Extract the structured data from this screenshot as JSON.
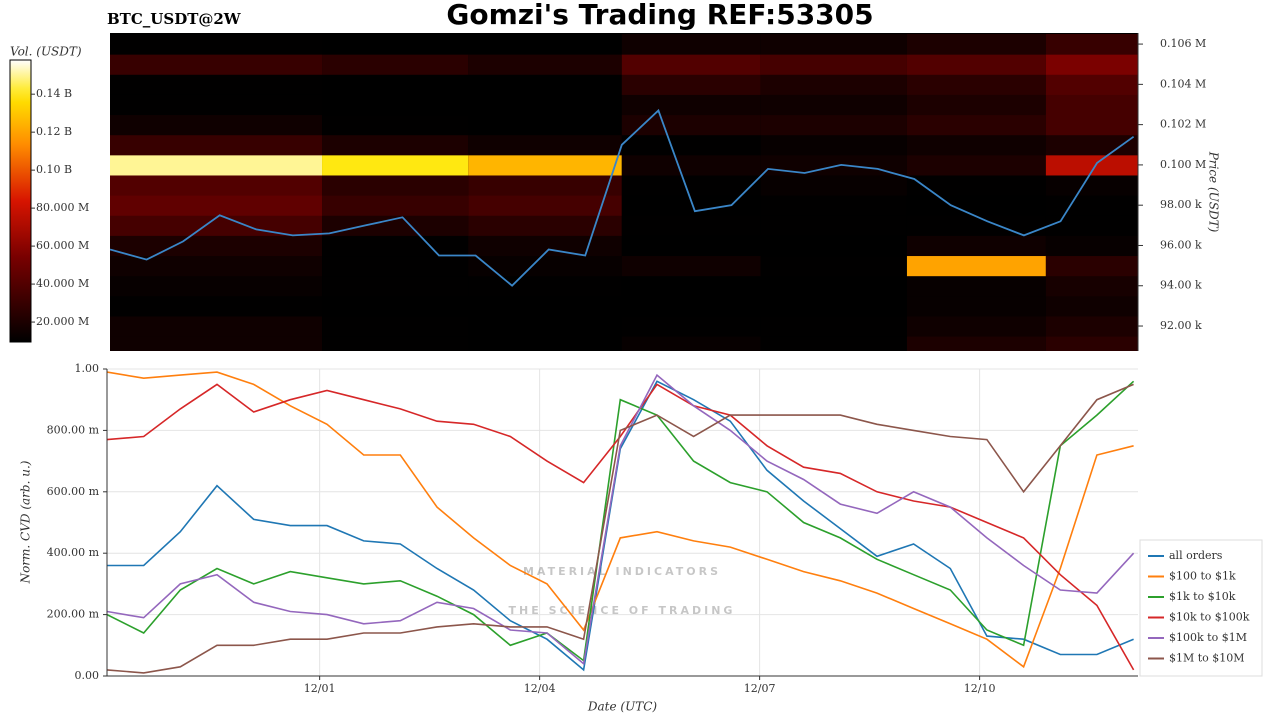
{
  "title": "Gomzi's Trading REF:53305",
  "watermark": {
    "title": "MATERIAL INDICATORS",
    "subtitle": "THE SCIENCE OF TRADING"
  },
  "chart_data": [
    {
      "type": "heatmap",
      "title": "BTC_USDT@2W",
      "x_edges": [
        -2.9,
        0,
        2,
        4.1,
        6,
        8,
        9.9,
        11.16
      ],
      "y_edges": [
        90500,
        91500,
        92500,
        93500,
        94500,
        95500,
        96500,
        97500,
        98500,
        99500,
        100500,
        101500,
        102500,
        103500,
        104500,
        105500,
        106500
      ],
      "values": [
        [
          15000000,
          10000000,
          8000000,
          12000000,
          10000000,
          20000000,
          25000000
        ],
        [
          15000000,
          10000000,
          8000000,
          10000000,
          10000000,
          15000000,
          20000000
        ],
        [
          10000000,
          8000000,
          8000000,
          8000000,
          8000000,
          12000000,
          15000000
        ],
        [
          12000000,
          10000000,
          10000000,
          8000000,
          8000000,
          12000000,
          18000000
        ],
        [
          15000000,
          10000000,
          12000000,
          15000000,
          10000000,
          120000000,
          25000000
        ],
        [
          20000000,
          10000000,
          15000000,
          8000000,
          8000000,
          15000000,
          12000000
        ],
        [
          35000000,
          20000000,
          25000000,
          10000000,
          10000000,
          10000000,
          10000000
        ],
        [
          45000000,
          30000000,
          35000000,
          8000000,
          10000000,
          8000000,
          10000000
        ],
        [
          40000000,
          25000000,
          30000000,
          10000000,
          12000000,
          10000000,
          12000000
        ],
        [
          150000000,
          140000000,
          125000000,
          15000000,
          15000000,
          20000000,
          75000000
        ],
        [
          30000000,
          20000000,
          15000000,
          10000000,
          12000000,
          15000000,
          20000000
        ],
        [
          15000000,
          10000000,
          8000000,
          20000000,
          20000000,
          25000000,
          35000000
        ],
        [
          10000000,
          8000000,
          8000000,
          15000000,
          15000000,
          20000000,
          35000000
        ],
        [
          10000000,
          8000000,
          8000000,
          25000000,
          20000000,
          25000000,
          40000000
        ],
        [
          30000000,
          25000000,
          20000000,
          40000000,
          35000000,
          40000000,
          55000000
        ],
        [
          10000000,
          8000000,
          8000000,
          15000000,
          15000000,
          20000000,
          30000000
        ]
      ],
      "colorbar_label": "Vol. (USDT)",
      "clim": [
        9500000,
        158000000
      ],
      "cticks": [
        {
          "value": 20000000,
          "label": "20.000 M"
        },
        {
          "value": 40000000,
          "label": "40.000 M"
        },
        {
          "value": 60000000,
          "label": "60.000 M"
        },
        {
          "value": 80000000,
          "label": "80.000 M"
        },
        {
          "value": 100000000,
          "label": "0.10 B"
        },
        {
          "value": 120000000,
          "label": "0.12 B"
        },
        {
          "value": 140000000,
          "label": "0.14 B"
        }
      ],
      "xlim": [
        -2.9,
        11.16
      ],
      "ylim": [
        90760,
        106550
      ],
      "yticks": [
        {
          "value": 92000,
          "label": "92.00 k"
        },
        {
          "value": 94000,
          "label": "94.00 k"
        },
        {
          "value": 96000,
          "label": "96.00 k"
        },
        {
          "value": 98000,
          "label": "98.00 k"
        },
        {
          "value": 100000,
          "label": "0.100 M"
        },
        {
          "value": 102000,
          "label": "0.102 M"
        },
        {
          "value": 104000,
          "label": "0.104 M"
        },
        {
          "value": 106000,
          "label": "0.106 M"
        }
      ],
      "ylabel": "Price (USDT)",
      "line": {
        "color": "#3a86c8",
        "x": [
          -2.9,
          -2.4,
          -1.9,
          -1.4,
          -0.9,
          -0.4,
          0.1,
          0.6,
          1.1,
          1.6,
          2.1,
          2.6,
          3.1,
          3.6,
          4.1,
          4.6,
          5.1,
          5.6,
          6.1,
          6.6,
          7.1,
          7.6,
          8.1,
          8.6,
          9.1,
          9.6,
          10.1,
          10.6,
          11.1
        ],
        "values": [
          95800,
          95300,
          96200,
          97500,
          96800,
          96500,
          96600,
          97000,
          97400,
          95500,
          95500,
          94000,
          95800,
          95500,
          101000,
          102700,
          97700,
          98000,
          99800,
          99600,
          100000,
          99800,
          99300,
          98000,
          97200,
          96500,
          97200,
          100100,
          101400
        ]
      }
    },
    {
      "type": "line",
      "xlabel": "Date (UTC)",
      "ylabel": "Norm. CVD (arb. u.)",
      "x": [
        -2.9,
        -2.4,
        -1.9,
        -1.4,
        -0.9,
        -0.4,
        0.1,
        0.6,
        1.1,
        1.6,
        2.1,
        2.6,
        3.1,
        3.6,
        4.1,
        4.6,
        5.1,
        5.6,
        6.1,
        6.6,
        7.1,
        7.6,
        8.1,
        8.6,
        9.1,
        9.6,
        10.1,
        10.6,
        11.1
      ],
      "xlim": [
        -2.9,
        11.16
      ],
      "xticks": [
        {
          "value": 0,
          "label": "12/01"
        },
        {
          "value": 3,
          "label": "12/04"
        },
        {
          "value": 6,
          "label": "12/07"
        },
        {
          "value": 9,
          "label": "12/10"
        }
      ],
      "ylim": [
        0,
        1
      ],
      "yticks": [
        {
          "value": 0,
          "label": "0.00"
        },
        {
          "value": 0.2,
          "label": "200.00 m"
        },
        {
          "value": 0.4,
          "label": "400.00 m"
        },
        {
          "value": 0.6,
          "label": "600.00 m"
        },
        {
          "value": 0.8,
          "label": "800.00 m"
        },
        {
          "value": 1,
          "label": "1.00"
        }
      ],
      "grid": true,
      "legend": "right",
      "series": [
        {
          "name": "all orders",
          "color": "#1f77b4",
          "values": [
            0.36,
            0.36,
            0.47,
            0.62,
            0.51,
            0.49,
            0.49,
            0.44,
            0.43,
            0.35,
            0.28,
            0.18,
            0.12,
            0.02,
            0.74,
            0.96,
            0.9,
            0.83,
            0.67,
            0.57,
            0.48,
            0.39,
            0.43,
            0.35,
            0.13,
            0.12,
            0.07,
            0.07,
            0.12
          ]
        },
        {
          "name": "$100 to $1k",
          "color": "#ff7f0e",
          "values": [
            0.99,
            0.97,
            0.98,
            0.99,
            0.95,
            0.88,
            0.82,
            0.72,
            0.72,
            0.55,
            0.45,
            0.36,
            0.3,
            0.15,
            0.45,
            0.47,
            0.44,
            0.42,
            0.38,
            0.34,
            0.31,
            0.27,
            0.22,
            0.17,
            0.12,
            0.03,
            0.35,
            0.72,
            0.75
          ]
        },
        {
          "name": "$1k to $10k",
          "color": "#2ca02c",
          "values": [
            0.2,
            0.14,
            0.28,
            0.35,
            0.3,
            0.34,
            0.32,
            0.3,
            0.31,
            0.26,
            0.2,
            0.1,
            0.14,
            0.05,
            0.9,
            0.85,
            0.7,
            0.63,
            0.6,
            0.5,
            0.45,
            0.38,
            0.33,
            0.28,
            0.15,
            0.1,
            0.75,
            0.85,
            0.96
          ]
        },
        {
          "name": "$10k to $100k",
          "color": "#d62728",
          "values": [
            0.77,
            0.78,
            0.87,
            0.95,
            0.86,
            0.9,
            0.93,
            0.9,
            0.87,
            0.83,
            0.82,
            0.78,
            0.7,
            0.63,
            0.78,
            0.95,
            0.88,
            0.85,
            0.75,
            0.68,
            0.66,
            0.6,
            0.57,
            0.55,
            0.5,
            0.45,
            0.33,
            0.23,
            0.02
          ]
        },
        {
          "name": "$100k to $1M",
          "color": "#9467bd",
          "values": [
            0.21,
            0.19,
            0.3,
            0.33,
            0.24,
            0.21,
            0.2,
            0.17,
            0.18,
            0.24,
            0.22,
            0.15,
            0.14,
            0.04,
            0.75,
            0.98,
            0.88,
            0.8,
            0.7,
            0.64,
            0.56,
            0.53,
            0.6,
            0.55,
            0.45,
            0.36,
            0.28,
            0.27,
            0.4
          ]
        },
        {
          "name": "$1M to $10M",
          "color": "#8c564b",
          "values": [
            0.02,
            0.01,
            0.03,
            0.1,
            0.1,
            0.12,
            0.12,
            0.14,
            0.14,
            0.16,
            0.17,
            0.16,
            0.16,
            0.12,
            0.8,
            0.85,
            0.78,
            0.85,
            0.85,
            0.85,
            0.85,
            0.82,
            0.8,
            0.78,
            0.77,
            0.6,
            0.75,
            0.9,
            0.95
          ]
        }
      ]
    }
  ]
}
